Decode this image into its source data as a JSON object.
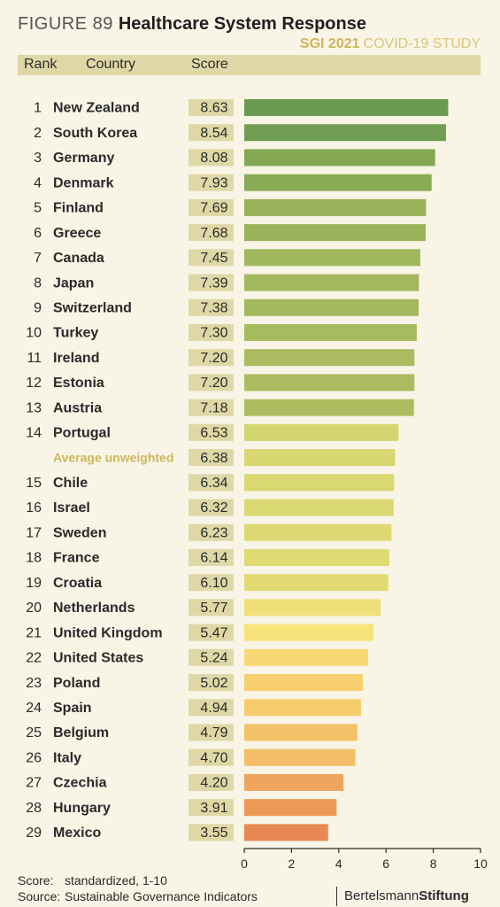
{
  "figure": {
    "number": "FIGURE 89",
    "title": "Healthcare System Response",
    "subtitle_bold": "SGI 2021",
    "subtitle_rest": "COVID-19 STUDY"
  },
  "header": {
    "rank": "Rank",
    "country": "Country",
    "score": "Score"
  },
  "footer": {
    "score_label": "Score:",
    "score_text": "standardized, 1-10",
    "source_label": "Source:",
    "source_text": "Sustainable Governance Indicators",
    "brand_regular": "Bertelsmann",
    "brand_bold": "Stiftung"
  },
  "chart_data": {
    "type": "bar",
    "orientation": "horizontal",
    "title": "Healthcare System Response",
    "xlim": [
      0,
      10
    ],
    "x_ticks": [
      "0",
      "2",
      "4",
      "6",
      "8",
      "10"
    ],
    "grid": false,
    "rows": [
      {
        "rank": "1",
        "country": "New Zealand",
        "score": "8.63",
        "value": 8.63,
        "color": "#6a9a4f"
      },
      {
        "rank": "2",
        "country": "South Korea",
        "score": "8.54",
        "value": 8.54,
        "color": "#6f9d51"
      },
      {
        "rank": "3",
        "country": "Germany",
        "score": "8.08",
        "value": 8.08,
        "color": "#84a854"
      },
      {
        "rank": "4",
        "country": "Denmark",
        "score": "7.93",
        "value": 7.93,
        "color": "#8aab56"
      },
      {
        "rank": "5",
        "country": "Finland",
        "score": "7.69",
        "value": 7.69,
        "color": "#97b259"
      },
      {
        "rank": "6",
        "country": "Greece",
        "score": "7.68",
        "value": 7.68,
        "color": "#98b359"
      },
      {
        "rank": "7",
        "country": "Canada",
        "score": "7.45",
        "value": 7.45,
        "color": "#a0b75c"
      },
      {
        "rank": "8",
        "country": "Japan",
        "score": "7.39",
        "value": 7.39,
        "color": "#a3b85d"
      },
      {
        "rank": "9",
        "country": "Switzerland",
        "score": "7.38",
        "value": 7.38,
        "color": "#a3b85d"
      },
      {
        "rank": "10",
        "country": "Turkey",
        "score": "7.30",
        "value": 7.3,
        "color": "#a6ba5e"
      },
      {
        "rank": "11",
        "country": "Ireland",
        "score": "7.20",
        "value": 7.2,
        "color": "#aabc5f"
      },
      {
        "rank": "12",
        "country": "Estonia",
        "score": "7.20",
        "value": 7.2,
        "color": "#aabc5f"
      },
      {
        "rank": "13",
        "country": "Austria",
        "score": "7.18",
        "value": 7.18,
        "color": "#abbd5f"
      },
      {
        "rank": "14",
        "country": "Portugal",
        "score": "6.53",
        "value": 6.53,
        "color": "#d3d56e"
      },
      {
        "rank": "",
        "country": "Average unweighted",
        "score": "6.38",
        "value": 6.38,
        "color": "#d8d770",
        "is_average": true
      },
      {
        "rank": "15",
        "country": "Chile",
        "score": "6.34",
        "value": 6.34,
        "color": "#d9d871"
      },
      {
        "rank": "16",
        "country": "Israel",
        "score": "6.32",
        "value": 6.32,
        "color": "#dad871"
      },
      {
        "rank": "17",
        "country": "Sweden",
        "score": "6.23",
        "value": 6.23,
        "color": "#ddd972"
      },
      {
        "rank": "18",
        "country": "France",
        "score": "6.14",
        "value": 6.14,
        "color": "#e0da73"
      },
      {
        "rank": "19",
        "country": "Croatia",
        "score": "6.10",
        "value": 6.1,
        "color": "#e2db74"
      },
      {
        "rank": "20",
        "country": "Netherlands",
        "score": "5.77",
        "value": 5.77,
        "color": "#efdf78"
      },
      {
        "rank": "21",
        "country": "United Kingdom",
        "score": "5.47",
        "value": 5.47,
        "color": "#f8e37a"
      },
      {
        "rank": "22",
        "country": "United States",
        "score": "5.24",
        "value": 5.24,
        "color": "#f8d874"
      },
      {
        "rank": "23",
        "country": "Poland",
        "score": "5.02",
        "value": 5.02,
        "color": "#f7cf6e"
      },
      {
        "rank": "24",
        "country": "Spain",
        "score": "4.94",
        "value": 4.94,
        "color": "#f6cb6c"
      },
      {
        "rank": "25",
        "country": "Belgium",
        "score": "4.79",
        "value": 4.79,
        "color": "#f4c369"
      },
      {
        "rank": "26",
        "country": "Italy",
        "score": "4.70",
        "value": 4.7,
        "color": "#f3be67"
      },
      {
        "rank": "27",
        "country": "Czechia",
        "score": "4.20",
        "value": 4.2,
        "color": "#efa55e"
      },
      {
        "rank": "28",
        "country": "Hungary",
        "score": "3.91",
        "value": 3.91,
        "color": "#ee9858"
      },
      {
        "rank": "29",
        "country": "Mexico",
        "score": "3.55",
        "value": 3.55,
        "color": "#e88953"
      }
    ]
  }
}
